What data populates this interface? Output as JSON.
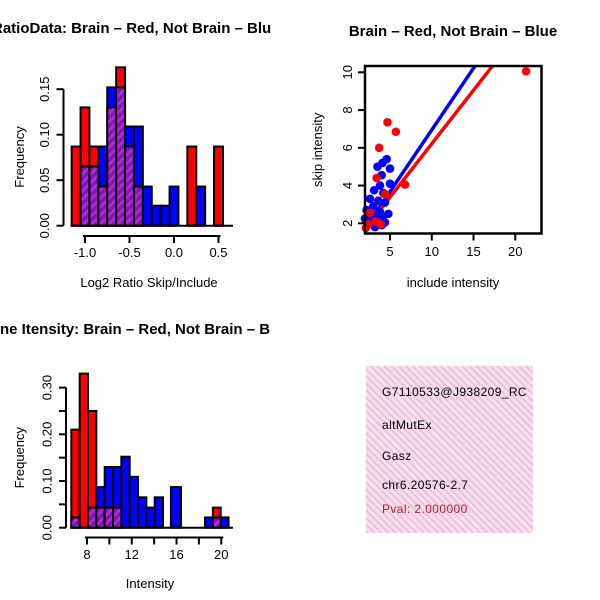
{
  "figure": {
    "type": "R-graphics-device",
    "background": "#ffffff"
  },
  "colors": {
    "red": "#ff0000",
    "blue": "#0000ff",
    "purple_base": "#8414b8",
    "purple_stripe": "#b52ad6",
    "black": "#000000",
    "pval_red": "#aa2233",
    "pink_base": "#fbdcf0",
    "pink_stripe": "#e3c9d6"
  },
  "chart_data": [
    {
      "id": "ratio_hist",
      "type": "bar",
      "subtype": "overlaid-histogram",
      "title": "RatioData: Brain – Red, Not Brain – Blu",
      "xlabel": "Log2 Ratio Skip/Include",
      "ylabel": "Frequency",
      "xlim": [
        -1.2,
        0.65
      ],
      "ylim": [
        0,
        0.175
      ],
      "xticks": [
        -1.0,
        -0.5,
        0.0,
        0.5
      ],
      "xtick_labels": [
        "-1.0",
        "-0.5",
        "0.0",
        "0.5"
      ],
      "yticks": [
        0.0,
        0.05,
        0.1,
        0.15
      ],
      "ytick_labels": [
        "0.00",
        "0.05",
        "0.10",
        "0.15"
      ],
      "legend": "red = Brain, blue = Not Brain, hatched purple = overlap",
      "bins": [
        {
          "x0": -1.15,
          "x1": -1.05,
          "red": 0.087,
          "blue": 0
        },
        {
          "x0": -1.05,
          "x1": -0.95,
          "red": 0.13,
          "blue": 0.065
        },
        {
          "x0": -0.95,
          "x1": -0.85,
          "red": 0.087,
          "blue": 0.065
        },
        {
          "x0": -0.85,
          "x1": -0.75,
          "red": 0.043,
          "blue": 0.087
        },
        {
          "x0": -0.75,
          "x1": -0.65,
          "red": 0.13,
          "blue": 0.152
        },
        {
          "x0": -0.65,
          "x1": -0.55,
          "red": 0.174,
          "blue": 0.152
        },
        {
          "x0": -0.55,
          "x1": -0.45,
          "red": 0.087,
          "blue": 0.109
        },
        {
          "x0": -0.45,
          "x1": -0.35,
          "red": 0.043,
          "blue": 0.109
        },
        {
          "x0": -0.35,
          "x1": -0.25,
          "red": 0,
          "blue": 0.043
        },
        {
          "x0": -0.25,
          "x1": -0.15,
          "red": 0,
          "blue": 0.022
        },
        {
          "x0": -0.15,
          "x1": -0.05,
          "red": 0,
          "blue": 0.022
        },
        {
          "x0": -0.05,
          "x1": 0.05,
          "red": 0,
          "blue": 0.043
        },
        {
          "x0": 0.15,
          "x1": 0.25,
          "red": 0.087,
          "blue": 0
        },
        {
          "x0": 0.25,
          "x1": 0.35,
          "red": 0,
          "blue": 0.043
        },
        {
          "x0": 0.45,
          "x1": 0.55,
          "red": 0.087,
          "blue": 0
        }
      ]
    },
    {
      "id": "scatter",
      "type": "scatter",
      "title": "Brain – Red, Not Brain – Blue",
      "xlabel": "include intensity",
      "ylabel": "skip intensity",
      "xlim": [
        1.6,
        23.1
      ],
      "ylim": [
        1.45,
        10.35
      ],
      "xticks": [
        5,
        10,
        15,
        20
      ],
      "xtick_labels": [
        "5",
        "10",
        "15",
        "20"
      ],
      "yticks": [
        2,
        4,
        6,
        8,
        10
      ],
      "ytick_labels": [
        "2",
        "4",
        "6",
        "8",
        "10"
      ],
      "red_points": [
        [
          21.3,
          10.05
        ],
        [
          4.7,
          7.35
        ],
        [
          5.7,
          6.85
        ],
        [
          3.7,
          6.0
        ],
        [
          3.4,
          4.4
        ],
        [
          6.8,
          4.05
        ],
        [
          4.4,
          3.55
        ],
        [
          2.6,
          2.55
        ],
        [
          3.3,
          2.1
        ],
        [
          2.4,
          1.95
        ],
        [
          3.9,
          1.95
        ],
        [
          2.1,
          1.75
        ]
      ],
      "blue_points": [
        [
          4.1,
          5.2
        ],
        [
          4.6,
          5.4
        ],
        [
          3.5,
          5.0
        ],
        [
          5.0,
          4.9
        ],
        [
          4.0,
          4.55
        ],
        [
          5.0,
          4.1
        ],
        [
          3.8,
          4.0
        ],
        [
          3.1,
          3.75
        ],
        [
          4.2,
          3.6
        ],
        [
          2.6,
          3.3
        ],
        [
          3.6,
          3.2
        ],
        [
          4.4,
          3.1
        ],
        [
          3.0,
          2.9
        ],
        [
          2.2,
          2.7
        ],
        [
          3.8,
          2.6
        ],
        [
          4.8,
          2.5
        ],
        [
          2.8,
          2.35
        ],
        [
          2.0,
          2.25
        ],
        [
          3.6,
          2.2
        ],
        [
          4.4,
          2.05
        ],
        [
          2.6,
          2.0
        ],
        [
          4.0,
          1.9
        ],
        [
          3.2,
          1.8
        ],
        [
          2.3,
          1.9
        ],
        [
          2.9,
          2.15
        ],
        [
          3.3,
          2.45
        ],
        [
          4.1,
          2.35
        ],
        [
          2.5,
          2.1
        ]
      ],
      "blue_line": {
        "x1": 1.6,
        "y1": 1.45,
        "x2": 15.2,
        "y2": 10.35
      },
      "red_line": {
        "x1": 1.6,
        "y1": 1.45,
        "x2": 17.3,
        "y2": 10.35
      }
    },
    {
      "id": "intensity_hist",
      "type": "bar",
      "subtype": "overlaid-histogram",
      "title": "ne Itensity: Brain – Red, Not Brain – B",
      "xlabel": "Intensity",
      "ylabel": "Frequency",
      "xlim": [
        6.2,
        21.5
      ],
      "ylim": [
        0,
        0.35
      ],
      "xticks": [
        8,
        10,
        12,
        14,
        16,
        18,
        20
      ],
      "xtick_labels": [
        "8",
        "",
        "12",
        "",
        "16",
        "",
        "20"
      ],
      "yticks": [
        0.0,
        0.05,
        0.1,
        0.15,
        0.2,
        0.25,
        0.3
      ],
      "ytick_labels": [
        "0.00",
        "",
        "0.10",
        "",
        "0.20",
        "",
        "0.30"
      ],
      "legend": "red = Brain, blue = Not Brain, hatched purple = overlap",
      "bins": [
        {
          "x0": 6.6,
          "x1": 7.345,
          "red": 0.21,
          "blue": 0.022
        },
        {
          "x0": 7.345,
          "x1": 8.09,
          "red": 0.33,
          "blue": 0
        },
        {
          "x0": 8.09,
          "x1": 8.835,
          "red": 0.25,
          "blue": 0.043
        },
        {
          "x0": 8.835,
          "x1": 9.58,
          "red": 0.043,
          "blue": 0.087
        },
        {
          "x0": 9.58,
          "x1": 10.325,
          "red": 0.043,
          "blue": 0.13
        },
        {
          "x0": 10.325,
          "x1": 11.07,
          "red": 0.043,
          "blue": 0.13
        },
        {
          "x0": 11.07,
          "x1": 11.815,
          "red": 0,
          "blue": 0.152
        },
        {
          "x0": 11.815,
          "x1": 12.56,
          "red": 0,
          "blue": 0.109
        },
        {
          "x0": 12.56,
          "x1": 13.305,
          "red": 0,
          "blue": 0.065
        },
        {
          "x0": 13.305,
          "x1": 14.05,
          "red": 0,
          "blue": 0.043
        },
        {
          "x0": 14.05,
          "x1": 14.795,
          "red": 0,
          "blue": 0.065
        },
        {
          "x0": 15.5,
          "x1": 16.4,
          "red": 0,
          "blue": 0.087
        },
        {
          "x0": 18.55,
          "x1": 19.25,
          "red": 0,
          "blue": 0.022
        },
        {
          "x0": 19.25,
          "x1": 19.95,
          "red": 0.043,
          "blue": 0.022
        },
        {
          "x0": 19.95,
          "x1": 20.65,
          "red": 0,
          "blue": 0.022
        }
      ]
    }
  ],
  "info_box": {
    "lines": [
      "G7110533@J938209_RC",
      "altMutEx",
      "Gasz",
      "chr6.20576-2.7"
    ],
    "pval_text": "Pval: 2.000000"
  }
}
